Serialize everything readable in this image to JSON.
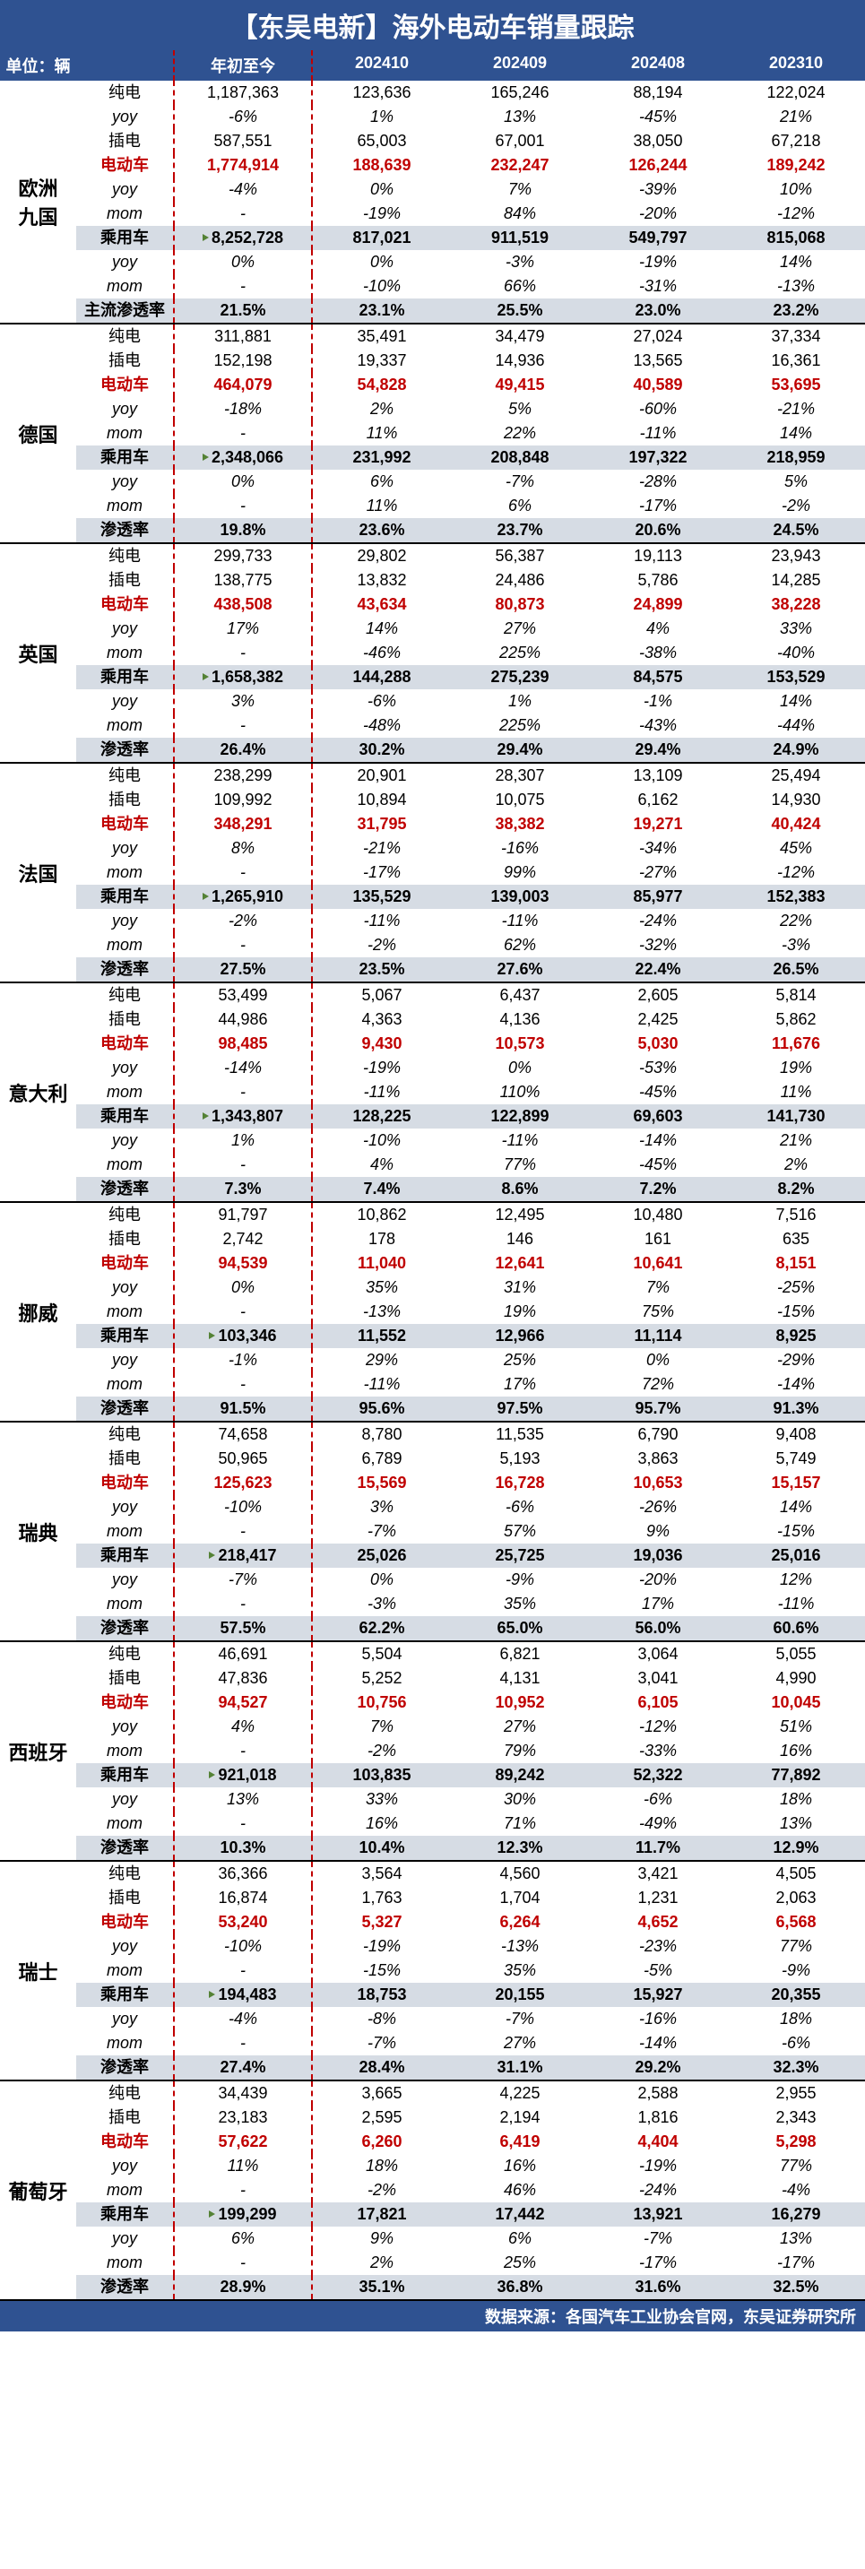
{
  "title": "【东吴电新】海外电动车销量跟踪",
  "unit_label": "单位：辆",
  "headers": [
    "年初至今",
    "202410",
    "202409",
    "202408",
    "202310"
  ],
  "footer": "数据来源：各国汽车工业协会官网，东吴证券研究所",
  "metrics": {
    "bev": "纯电",
    "phev": "插电",
    "ev": "电动车",
    "yoy": "yoy",
    "mom": "mom",
    "pv": "乘用车",
    "pen": "渗透率",
    "pen_main": "主流渗透率"
  },
  "countries": [
    {
      "name": "欧洲\n九国",
      "rows": [
        {
          "m": "bev",
          "v": [
            "1,187,363",
            "123,636",
            "165,246",
            "88,194",
            "122,024"
          ]
        },
        {
          "m": "yoy",
          "v": [
            "-6%",
            "1%",
            "13%",
            "-45%",
            "21%"
          ],
          "it": 1
        },
        {
          "m": "phev",
          "v": [
            "587,551",
            "65,003",
            "67,001",
            "38,050",
            "67,218"
          ]
        },
        {
          "m": "ev",
          "v": [
            "1,774,914",
            "188,639",
            "232,247",
            "126,244",
            "189,242"
          ],
          "red": 1,
          "bold": 1
        },
        {
          "m": "yoy",
          "v": [
            "-4%",
            "0%",
            "7%",
            "-39%",
            "10%"
          ],
          "it": 1
        },
        {
          "m": "mom",
          "v": [
            "-",
            "-19%",
            "84%",
            "-20%",
            "-12%"
          ],
          "it": 1
        },
        {
          "m": "pv",
          "v": [
            "8,252,728",
            "817,021",
            "911,519",
            "549,797",
            "815,068"
          ],
          "bold": 1,
          "bg": 1,
          "tri": 1
        },
        {
          "m": "yoy",
          "v": [
            "0%",
            "0%",
            "-3%",
            "-19%",
            "14%"
          ],
          "it": 1
        },
        {
          "m": "mom",
          "v": [
            "-",
            "-10%",
            "66%",
            "-31%",
            "-13%"
          ],
          "it": 1
        },
        {
          "m": "pen_main",
          "v": [
            "21.5%",
            "23.1%",
            "25.5%",
            "23.0%",
            "23.2%"
          ],
          "bold": 1,
          "bg": 1
        }
      ]
    },
    {
      "name": "德国",
      "rows": [
        {
          "m": "bev",
          "v": [
            "311,881",
            "35,491",
            "34,479",
            "27,024",
            "37,334"
          ]
        },
        {
          "m": "phev",
          "v": [
            "152,198",
            "19,337",
            "14,936",
            "13,565",
            "16,361"
          ]
        },
        {
          "m": "ev",
          "v": [
            "464,079",
            "54,828",
            "49,415",
            "40,589",
            "53,695"
          ],
          "red": 1,
          "bold": 1
        },
        {
          "m": "yoy",
          "v": [
            "-18%",
            "2%",
            "5%",
            "-60%",
            "-21%"
          ],
          "it": 1
        },
        {
          "m": "mom",
          "v": [
            "-",
            "11%",
            "22%",
            "-11%",
            "14%"
          ],
          "it": 1
        },
        {
          "m": "pv",
          "v": [
            "2,348,066",
            "231,992",
            "208,848",
            "197,322",
            "218,959"
          ],
          "bold": 1,
          "bg": 1,
          "tri": 1
        },
        {
          "m": "yoy",
          "v": [
            "0%",
            "6%",
            "-7%",
            "-28%",
            "5%"
          ],
          "it": 1
        },
        {
          "m": "mom",
          "v": [
            "-",
            "11%",
            "6%",
            "-17%",
            "-2%"
          ],
          "it": 1
        },
        {
          "m": "pen",
          "v": [
            "19.8%",
            "23.6%",
            "23.7%",
            "20.6%",
            "24.5%"
          ],
          "bold": 1,
          "bg": 1
        }
      ]
    },
    {
      "name": "英国",
      "rows": [
        {
          "m": "bev",
          "v": [
            "299,733",
            "29,802",
            "56,387",
            "19,113",
            "23,943"
          ]
        },
        {
          "m": "phev",
          "v": [
            "138,775",
            "13,832",
            "24,486",
            "5,786",
            "14,285"
          ]
        },
        {
          "m": "ev",
          "v": [
            "438,508",
            "43,634",
            "80,873",
            "24,899",
            "38,228"
          ],
          "red": 1,
          "bold": 1
        },
        {
          "m": "yoy",
          "v": [
            "17%",
            "14%",
            "27%",
            "4%",
            "33%"
          ],
          "it": 1
        },
        {
          "m": "mom",
          "v": [
            "-",
            "-46%",
            "225%",
            "-38%",
            "-40%"
          ],
          "it": 1
        },
        {
          "m": "pv",
          "v": [
            "1,658,382",
            "144,288",
            "275,239",
            "84,575",
            "153,529"
          ],
          "bold": 1,
          "bg": 1,
          "tri": 1
        },
        {
          "m": "yoy",
          "v": [
            "3%",
            "-6%",
            "1%",
            "-1%",
            "14%"
          ],
          "it": 1
        },
        {
          "m": "mom",
          "v": [
            "-",
            "-48%",
            "225%",
            "-43%",
            "-44%"
          ],
          "it": 1
        },
        {
          "m": "pen",
          "v": [
            "26.4%",
            "30.2%",
            "29.4%",
            "29.4%",
            "24.9%"
          ],
          "bold": 1,
          "bg": 1
        }
      ]
    },
    {
      "name": "法国",
      "rows": [
        {
          "m": "bev",
          "v": [
            "238,299",
            "20,901",
            "28,307",
            "13,109",
            "25,494"
          ]
        },
        {
          "m": "phev",
          "v": [
            "109,992",
            "10,894",
            "10,075",
            "6,162",
            "14,930"
          ]
        },
        {
          "m": "ev",
          "v": [
            "348,291",
            "31,795",
            "38,382",
            "19,271",
            "40,424"
          ],
          "red": 1,
          "bold": 1
        },
        {
          "m": "yoy",
          "v": [
            "8%",
            "-21%",
            "-16%",
            "-34%",
            "45%"
          ],
          "it": 1
        },
        {
          "m": "mom",
          "v": [
            "-",
            "-17%",
            "99%",
            "-27%",
            "-12%"
          ],
          "it": 1
        },
        {
          "m": "pv",
          "v": [
            "1,265,910",
            "135,529",
            "139,003",
            "85,977",
            "152,383"
          ],
          "bold": 1,
          "bg": 1,
          "tri": 1
        },
        {
          "m": "yoy",
          "v": [
            "-2%",
            "-11%",
            "-11%",
            "-24%",
            "22%"
          ],
          "it": 1
        },
        {
          "m": "mom",
          "v": [
            "-",
            "-2%",
            "62%",
            "-32%",
            "-3%"
          ],
          "it": 1
        },
        {
          "m": "pen",
          "v": [
            "27.5%",
            "23.5%",
            "27.6%",
            "22.4%",
            "26.5%"
          ],
          "bold": 1,
          "bg": 1
        }
      ]
    },
    {
      "name": "意大利",
      "rows": [
        {
          "m": "bev",
          "v": [
            "53,499",
            "5,067",
            "6,437",
            "2,605",
            "5,814"
          ]
        },
        {
          "m": "phev",
          "v": [
            "44,986",
            "4,363",
            "4,136",
            "2,425",
            "5,862"
          ]
        },
        {
          "m": "ev",
          "v": [
            "98,485",
            "9,430",
            "10,573",
            "5,030",
            "11,676"
          ],
          "red": 1,
          "bold": 1
        },
        {
          "m": "yoy",
          "v": [
            "-14%",
            "-19%",
            "0%",
            "-53%",
            "19%"
          ],
          "it": 1
        },
        {
          "m": "mom",
          "v": [
            "-",
            "-11%",
            "110%",
            "-45%",
            "11%"
          ],
          "it": 1
        },
        {
          "m": "pv",
          "v": [
            "1,343,807",
            "128,225",
            "122,899",
            "69,603",
            "141,730"
          ],
          "bold": 1,
          "bg": 1,
          "tri": 1
        },
        {
          "m": "yoy",
          "v": [
            "1%",
            "-10%",
            "-11%",
            "-14%",
            "21%"
          ],
          "it": 1
        },
        {
          "m": "mom",
          "v": [
            "-",
            "4%",
            "77%",
            "-45%",
            "2%"
          ],
          "it": 1
        },
        {
          "m": "pen",
          "v": [
            "7.3%",
            "7.4%",
            "8.6%",
            "7.2%",
            "8.2%"
          ],
          "bold": 1,
          "bg": 1
        }
      ]
    },
    {
      "name": "挪威",
      "rows": [
        {
          "m": "bev",
          "v": [
            "91,797",
            "10,862",
            "12,495",
            "10,480",
            "7,516"
          ]
        },
        {
          "m": "phev",
          "v": [
            "2,742",
            "178",
            "146",
            "161",
            "635"
          ]
        },
        {
          "m": "ev",
          "v": [
            "94,539",
            "11,040",
            "12,641",
            "10,641",
            "8,151"
          ],
          "red": 1,
          "bold": 1
        },
        {
          "m": "yoy",
          "v": [
            "0%",
            "35%",
            "31%",
            "7%",
            "-25%"
          ],
          "it": 1
        },
        {
          "m": "mom",
          "v": [
            "-",
            "-13%",
            "19%",
            "75%",
            "-15%"
          ],
          "it": 1
        },
        {
          "m": "pv",
          "v": [
            "103,346",
            "11,552",
            "12,966",
            "11,114",
            "8,925"
          ],
          "bold": 1,
          "bg": 1,
          "tri": 1
        },
        {
          "m": "yoy",
          "v": [
            "-1%",
            "29%",
            "25%",
            "0%",
            "-29%"
          ],
          "it": 1
        },
        {
          "m": "mom",
          "v": [
            "-",
            "-11%",
            "17%",
            "72%",
            "-14%"
          ],
          "it": 1
        },
        {
          "m": "pen",
          "v": [
            "91.5%",
            "95.6%",
            "97.5%",
            "95.7%",
            "91.3%"
          ],
          "bold": 1,
          "bg": 1
        }
      ]
    },
    {
      "name": "瑞典",
      "rows": [
        {
          "m": "bev",
          "v": [
            "74,658",
            "8,780",
            "11,535",
            "6,790",
            "9,408"
          ]
        },
        {
          "m": "phev",
          "v": [
            "50,965",
            "6,789",
            "5,193",
            "3,863",
            "5,749"
          ]
        },
        {
          "m": "ev",
          "v": [
            "125,623",
            "15,569",
            "16,728",
            "10,653",
            "15,157"
          ],
          "red": 1,
          "bold": 1
        },
        {
          "m": "yoy",
          "v": [
            "-10%",
            "3%",
            "-6%",
            "-26%",
            "14%"
          ],
          "it": 1
        },
        {
          "m": "mom",
          "v": [
            "-",
            "-7%",
            "57%",
            "9%",
            "-15%"
          ],
          "it": 1
        },
        {
          "m": "pv",
          "v": [
            "218,417",
            "25,026",
            "25,725",
            "19,036",
            "25,016"
          ],
          "bold": 1,
          "bg": 1,
          "tri": 1
        },
        {
          "m": "yoy",
          "v": [
            "-7%",
            "0%",
            "-9%",
            "-20%",
            "12%"
          ],
          "it": 1
        },
        {
          "m": "mom",
          "v": [
            "-",
            "-3%",
            "35%",
            "17%",
            "-11%"
          ],
          "it": 1
        },
        {
          "m": "pen",
          "v": [
            "57.5%",
            "62.2%",
            "65.0%",
            "56.0%",
            "60.6%"
          ],
          "bold": 1,
          "bg": 1
        }
      ]
    },
    {
      "name": "西班牙",
      "rows": [
        {
          "m": "bev",
          "v": [
            "46,691",
            "5,504",
            "6,821",
            "3,064",
            "5,055"
          ]
        },
        {
          "m": "phev",
          "v": [
            "47,836",
            "5,252",
            "4,131",
            "3,041",
            "4,990"
          ]
        },
        {
          "m": "ev",
          "v": [
            "94,527",
            "10,756",
            "10,952",
            "6,105",
            "10,045"
          ],
          "red": 1,
          "bold": 1
        },
        {
          "m": "yoy",
          "v": [
            "4%",
            "7%",
            "27%",
            "-12%",
            "51%"
          ],
          "it": 1
        },
        {
          "m": "mom",
          "v": [
            "-",
            "-2%",
            "79%",
            "-33%",
            "16%"
          ],
          "it": 1
        },
        {
          "m": "pv",
          "v": [
            "921,018",
            "103,835",
            "89,242",
            "52,322",
            "77,892"
          ],
          "bold": 1,
          "bg": 1,
          "tri": 1
        },
        {
          "m": "yoy",
          "v": [
            "13%",
            "33%",
            "30%",
            "-6%",
            "18%"
          ],
          "it": 1
        },
        {
          "m": "mom",
          "v": [
            "-",
            "16%",
            "71%",
            "-49%",
            "13%"
          ],
          "it": 1
        },
        {
          "m": "pen",
          "v": [
            "10.3%",
            "10.4%",
            "12.3%",
            "11.7%",
            "12.9%"
          ],
          "bold": 1,
          "bg": 1
        }
      ]
    },
    {
      "name": "瑞士",
      "rows": [
        {
          "m": "bev",
          "v": [
            "36,366",
            "3,564",
            "4,560",
            "3,421",
            "4,505"
          ]
        },
        {
          "m": "phev",
          "v": [
            "16,874",
            "1,763",
            "1,704",
            "1,231",
            "2,063"
          ]
        },
        {
          "m": "ev",
          "v": [
            "53,240",
            "5,327",
            "6,264",
            "4,652",
            "6,568"
          ],
          "red": 1,
          "bold": 1
        },
        {
          "m": "yoy",
          "v": [
            "-10%",
            "-19%",
            "-13%",
            "-23%",
            "77%"
          ],
          "it": 1
        },
        {
          "m": "mom",
          "v": [
            "-",
            "-15%",
            "35%",
            "-5%",
            "-9%"
          ],
          "it": 1
        },
        {
          "m": "pv",
          "v": [
            "194,483",
            "18,753",
            "20,155",
            "15,927",
            "20,355"
          ],
          "bold": 1,
          "bg": 1,
          "tri": 1
        },
        {
          "m": "yoy",
          "v": [
            "-4%",
            "-8%",
            "-7%",
            "-16%",
            "18%"
          ],
          "it": 1
        },
        {
          "m": "mom",
          "v": [
            "-",
            "-7%",
            "27%",
            "-14%",
            "-6%"
          ],
          "it": 1
        },
        {
          "m": "pen",
          "v": [
            "27.4%",
            "28.4%",
            "31.1%",
            "29.2%",
            "32.3%"
          ],
          "bold": 1,
          "bg": 1
        }
      ]
    },
    {
      "name": "葡萄牙",
      "rows": [
        {
          "m": "bev",
          "v": [
            "34,439",
            "3,665",
            "4,225",
            "2,588",
            "2,955"
          ]
        },
        {
          "m": "phev",
          "v": [
            "23,183",
            "2,595",
            "2,194",
            "1,816",
            "2,343"
          ]
        },
        {
          "m": "ev",
          "v": [
            "57,622",
            "6,260",
            "6,419",
            "4,404",
            "5,298"
          ],
          "red": 1,
          "bold": 1
        },
        {
          "m": "yoy",
          "v": [
            "11%",
            "18%",
            "16%",
            "-19%",
            "77%"
          ],
          "it": 1
        },
        {
          "m": "mom",
          "v": [
            "-",
            "-2%",
            "46%",
            "-24%",
            "-4%"
          ],
          "it": 1
        },
        {
          "m": "pv",
          "v": [
            "199,299",
            "17,821",
            "17,442",
            "13,921",
            "16,279"
          ],
          "bold": 1,
          "bg": 1,
          "tri": 1
        },
        {
          "m": "yoy",
          "v": [
            "6%",
            "9%",
            "6%",
            "-7%",
            "13%"
          ],
          "it": 1
        },
        {
          "m": "mom",
          "v": [
            "-",
            "2%",
            "25%",
            "-17%",
            "-17%"
          ],
          "it": 1
        },
        {
          "m": "pen",
          "v": [
            "28.9%",
            "35.1%",
            "36.8%",
            "31.6%",
            "32.5%"
          ],
          "bold": 1,
          "bg": 1
        }
      ]
    }
  ]
}
